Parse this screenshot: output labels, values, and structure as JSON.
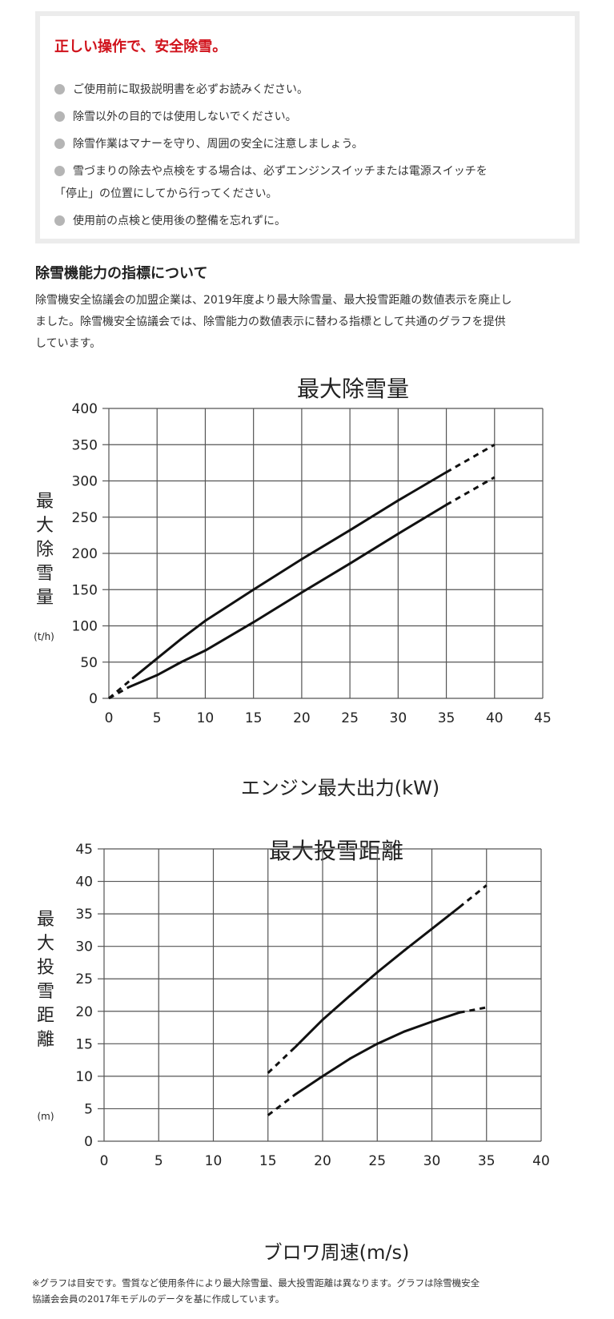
{
  "safety": {
    "title": "正しい操作で、安全除雪。",
    "rules": [
      {
        "lines": [
          "ご使用前に取扱説明書を必ずお読みください。"
        ]
      },
      {
        "lines": [
          "除雪以外の目的では使用しないでください。"
        ]
      },
      {
        "lines": [
          "除雪作業はマナーを守り、周囲の安全に注意しましょう。"
        ]
      },
      {
        "lines": [
          "雪づまりの除去や点検をする場合は、必ずエンジンスイッチまたは電源スイッチを",
          "「停止」の位置にしてから行ってください。"
        ]
      },
      {
        "lines": [
          "使用前の点検と使用後の整備を忘れずに。"
        ]
      }
    ]
  },
  "section": {
    "title": "除雪機能力の指標について",
    "body_lines": [
      "除雪機安全協議会の加盟企業は、2019年度より最大除雪量、最大投雪距離の数値表示を廃止し",
      "ました。除雪機安全協議会では、除雪能力の数値表示に替わる指標として共通のグラフを提供",
      "しています。"
    ]
  },
  "chart_data": [
    {
      "type": "line",
      "title": "最大除雪量",
      "xlabel": "エンジン最大出力(kW)",
      "ylabel": "最大除雪量",
      "yunit": "(t/h)",
      "xlim": [
        0,
        45
      ],
      "ylim": [
        0,
        400
      ],
      "xticks": [
        0,
        5,
        10,
        15,
        20,
        25,
        30,
        35,
        40,
        45
      ],
      "yticks": [
        0,
        50,
        100,
        150,
        200,
        250,
        300,
        350,
        400
      ],
      "grid": true,
      "series": [
        {
          "points": [
            [
              0,
              0
            ],
            [
              2.5,
              28
            ],
            [
              5,
              55
            ],
            [
              7.5,
              82
            ],
            [
              10,
              107
            ],
            [
              15,
              150
            ],
            [
              20,
              192
            ],
            [
              25,
              232
            ],
            [
              30,
              273
            ],
            [
              35,
              312
            ],
            [
              40,
              350
            ]
          ],
          "dashed_ranges": [
            [
              0,
              2.5
            ],
            [
              35,
              40
            ]
          ]
        },
        {
          "points": [
            [
              0,
              0
            ],
            [
              2,
              15
            ],
            [
              5,
              32
            ],
            [
              7.5,
              50
            ],
            [
              10,
              66
            ],
            [
              15,
              105
            ],
            [
              20,
              146
            ],
            [
              25,
              186
            ],
            [
              30,
              227
            ],
            [
              35,
              267
            ],
            [
              40,
              305
            ]
          ],
          "dashed_ranges": [
            [
              0,
              1.5
            ],
            [
              35,
              40
            ]
          ]
        }
      ]
    },
    {
      "type": "line",
      "title": "最大投雪距離",
      "xlabel": "ブロワ周速(m/s)",
      "ylabel": "最大投雪距離",
      "yunit": "(m)",
      "xlim": [
        0,
        40
      ],
      "ylim": [
        0,
        45
      ],
      "xticks": [
        0,
        5,
        10,
        15,
        20,
        25,
        30,
        35,
        40
      ],
      "yticks": [
        0,
        5,
        10,
        15,
        20,
        25,
        30,
        35,
        40,
        45
      ],
      "grid": true,
      "series": [
        {
          "points": [
            [
              15,
              10.5
            ],
            [
              17.5,
              14.5
            ],
            [
              20,
              18.7
            ],
            [
              22.5,
              22.4
            ],
            [
              25,
              26
            ],
            [
              27.5,
              29.4
            ],
            [
              30,
              32.7
            ],
            [
              32.5,
              36
            ],
            [
              35,
              39.4
            ]
          ],
          "dashed_ranges": [
            [
              15,
              17.5
            ],
            [
              32.5,
              35
            ]
          ]
        },
        {
          "points": [
            [
              15,
              4
            ],
            [
              17.5,
              7.2
            ],
            [
              20,
              10
            ],
            [
              22.5,
              12.7
            ],
            [
              25,
              15
            ],
            [
              27.5,
              16.9
            ],
            [
              30,
              18.4
            ],
            [
              32.5,
              19.8
            ],
            [
              35,
              20.6
            ]
          ],
          "dashed_ranges": [
            [
              15,
              17.5
            ],
            [
              32.5,
              35
            ]
          ]
        }
      ]
    }
  ],
  "footnote_lines": [
    "※グラフは目安です。雪質など使用条件により最大除雪量、最大投雪距離は異なります。グラフは除雪機安全",
    "協議会会員の2017年モデルのデータを基に作成しています。"
  ]
}
